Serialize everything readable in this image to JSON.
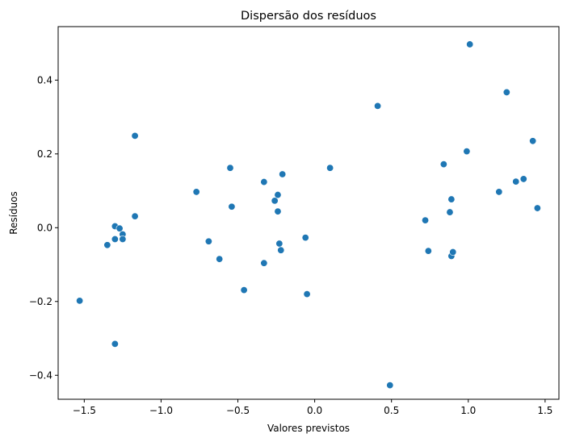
{
  "chart_data": {
    "type": "scatter",
    "title": "Dispersão dos resíduos",
    "xlabel": "Valores previstos",
    "ylabel": "Resíduos",
    "xlim": [
      -1.67,
      1.59
    ],
    "ylim": [
      -0.465,
      0.545
    ],
    "xticks": [
      -1.5,
      -1.0,
      -0.5,
      0.0,
      0.5,
      1.0,
      1.5
    ],
    "xtick_labels": [
      "−1.5",
      "−1.0",
      "−0.5",
      "0.0",
      "0.5",
      "1.0",
      "1.5"
    ],
    "yticks": [
      -0.4,
      -0.2,
      0.0,
      0.2,
      0.4
    ],
    "ytick_labels": [
      "−0.4",
      "−0.2",
      "0.0",
      "0.2",
      "0.4"
    ],
    "grid": false,
    "color": "#1f77b4",
    "points": [
      {
        "x": -1.53,
        "y": -0.198
      },
      {
        "x": -1.35,
        "y": -0.047
      },
      {
        "x": -1.3,
        "y": 0.004
      },
      {
        "x": -1.3,
        "y": -0.031
      },
      {
        "x": -1.3,
        "y": -0.315
      },
      {
        "x": -1.27,
        "y": -0.002
      },
      {
        "x": -1.25,
        "y": -0.018
      },
      {
        "x": -1.25,
        "y": -0.031
      },
      {
        "x": -1.17,
        "y": 0.249
      },
      {
        "x": -1.17,
        "y": 0.031
      },
      {
        "x": -0.77,
        "y": 0.097
      },
      {
        "x": -0.69,
        "y": -0.037
      },
      {
        "x": -0.62,
        "y": -0.085
      },
      {
        "x": -0.55,
        "y": 0.162
      },
      {
        "x": -0.54,
        "y": 0.057
      },
      {
        "x": -0.46,
        "y": -0.169
      },
      {
        "x": -0.33,
        "y": 0.124
      },
      {
        "x": -0.33,
        "y": -0.096
      },
      {
        "x": -0.26,
        "y": 0.073
      },
      {
        "x": -0.24,
        "y": 0.089
      },
      {
        "x": -0.24,
        "y": 0.044
      },
      {
        "x": -0.23,
        "y": -0.043
      },
      {
        "x": -0.22,
        "y": -0.061
      },
      {
        "x": -0.21,
        "y": 0.145
      },
      {
        "x": -0.06,
        "y": -0.027
      },
      {
        "x": -0.05,
        "y": -0.18
      },
      {
        "x": 0.1,
        "y": 0.162
      },
      {
        "x": 0.41,
        "y": 0.33
      },
      {
        "x": 0.49,
        "y": -0.427
      },
      {
        "x": 0.72,
        "y": 0.02
      },
      {
        "x": 0.74,
        "y": -0.063
      },
      {
        "x": 0.84,
        "y": 0.172
      },
      {
        "x": 0.88,
        "y": 0.042
      },
      {
        "x": 0.89,
        "y": 0.077
      },
      {
        "x": 0.89,
        "y": -0.077
      },
      {
        "x": 0.9,
        "y": -0.066
      },
      {
        "x": 0.99,
        "y": 0.207
      },
      {
        "x": 1.01,
        "y": 0.497
      },
      {
        "x": 1.2,
        "y": 0.097
      },
      {
        "x": 1.25,
        "y": 0.367
      },
      {
        "x": 1.31,
        "y": 0.125
      },
      {
        "x": 1.36,
        "y": 0.132
      },
      {
        "x": 1.42,
        "y": 0.235
      },
      {
        "x": 1.45,
        "y": 0.053
      }
    ]
  }
}
